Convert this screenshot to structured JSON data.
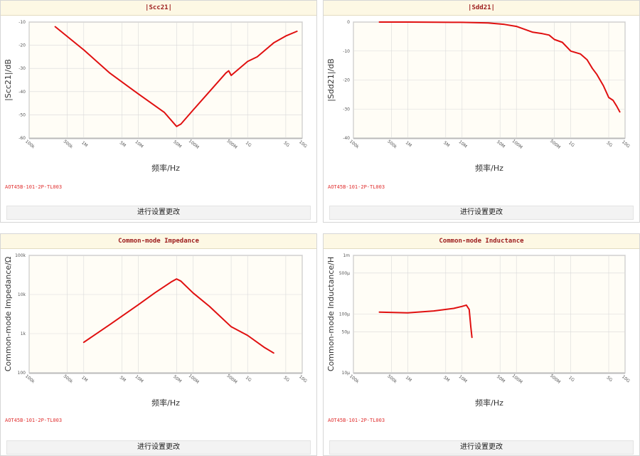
{
  "settings_label": "进行设置更改",
  "charts": [
    {
      "header": "|Scc21|",
      "model": "AOT45B-101-2P-TL003",
      "chart_data": {
        "type": "line",
        "title": "|Scc21|",
        "xlabel": "频率/Hz",
        "ylabel": "|Scc21|/dB",
        "x_scale": "log",
        "y_scale": "linear",
        "xlim": [
          100000,
          10000000000
        ],
        "ylim": [
          -60,
          -10
        ],
        "x_ticks": [
          [
            100000,
            "100k"
          ],
          [
            500000,
            "500k"
          ],
          [
            1000000,
            "1M"
          ],
          [
            5000000,
            "5M"
          ],
          [
            10000000,
            "10M"
          ],
          [
            50000000,
            "50M"
          ],
          [
            100000000,
            "100M"
          ],
          [
            500000000,
            "500M"
          ],
          [
            1000000000,
            "1G"
          ],
          [
            5000000000,
            "5G"
          ],
          [
            10000000000,
            "10G"
          ]
        ],
        "y_ticks": [
          [
            -10,
            "-10"
          ],
          [
            -20,
            "-20"
          ],
          [
            -30,
            "-30"
          ],
          [
            -40,
            "-40"
          ],
          [
            -50,
            "-50"
          ],
          [
            -60,
            "-60"
          ]
        ],
        "color": "#e01010",
        "grid": true,
        "x": [
          300000,
          1000000,
          3000000,
          10000000,
          30000000,
          50000000,
          60000000,
          100000000,
          200000000,
          400000000,
          450000000,
          500000000,
          1000000000,
          1500000000,
          3000000000,
          5000000000,
          8000000000
        ],
        "y": [
          -12,
          -22,
          -32,
          -41,
          -49,
          -55,
          -54,
          -48,
          -40,
          -32,
          -31,
          -33,
          -27,
          -25,
          -19,
          -16,
          -14
        ]
      }
    },
    {
      "header": "|Sdd21|",
      "model": "AOT45B-101-2P-TL003",
      "chart_data": {
        "type": "line",
        "title": "|Sdd21|",
        "xlabel": "频率/Hz",
        "ylabel": "|Sdd21|/dB",
        "x_scale": "log",
        "y_scale": "linear",
        "xlim": [
          100000,
          10000000000
        ],
        "ylim": [
          -40,
          0
        ],
        "x_ticks": [
          [
            100000,
            "100k"
          ],
          [
            500000,
            "500k"
          ],
          [
            1000000,
            "1M"
          ],
          [
            5000000,
            "5M"
          ],
          [
            10000000,
            "10M"
          ],
          [
            50000000,
            "50M"
          ],
          [
            100000000,
            "100M"
          ],
          [
            500000000,
            "500M"
          ],
          [
            1000000000,
            "1G"
          ],
          [
            5000000000,
            "5G"
          ],
          [
            10000000000,
            "10G"
          ]
        ],
        "y_ticks": [
          [
            0,
            "0"
          ],
          [
            -10,
            "-10"
          ],
          [
            -20,
            "-20"
          ],
          [
            -30,
            "-30"
          ],
          [
            -40,
            "-40"
          ]
        ],
        "color": "#e01010",
        "grid": true,
        "x": [
          300000,
          1000000,
          10000000,
          30000000,
          60000000,
          100000000,
          200000000,
          300000000,
          400000000,
          500000000,
          700000000,
          1000000000,
          1500000000,
          2000000000,
          2500000000,
          3000000000,
          4000000000,
          5000000000,
          6000000000,
          7000000000,
          8000000000
        ],
        "y": [
          0,
          0,
          -0.1,
          -0.3,
          -0.8,
          -1.5,
          -3.5,
          -4,
          -4.5,
          -6,
          -7,
          -10,
          -11,
          -13,
          -16,
          -18,
          -22,
          -26,
          -27,
          -29,
          -31
        ]
      }
    },
    {
      "header": "Common-mode Impedance",
      "model": "AOT45B-101-2P-TL003",
      "chart_data": {
        "type": "line",
        "title": "Common-mode Impedance",
        "xlabel": "频率/Hz",
        "ylabel": "Common-mode Impedance/Ω",
        "x_scale": "log",
        "y_scale": "log",
        "xlim": [
          100000,
          10000000000
        ],
        "ylim": [
          100,
          100000
        ],
        "x_ticks": [
          [
            100000,
            "100k"
          ],
          [
            500000,
            "500k"
          ],
          [
            1000000,
            "1M"
          ],
          [
            5000000,
            "5M"
          ],
          [
            10000000,
            "10M"
          ],
          [
            50000000,
            "50M"
          ],
          [
            100000000,
            "100M"
          ],
          [
            500000000,
            "500M"
          ],
          [
            1000000000,
            "1G"
          ],
          [
            5000000000,
            "5G"
          ],
          [
            10000000000,
            "10G"
          ]
        ],
        "y_ticks": [
          [
            100,
            "100"
          ],
          [
            1000,
            "1k"
          ],
          [
            10000,
            "10k"
          ],
          [
            100000,
            "100k"
          ]
        ],
        "color": "#e01010",
        "grid": true,
        "x": [
          1000000,
          3000000,
          10000000,
          20000000,
          40000000,
          50000000,
          60000000,
          100000000,
          200000000,
          500000000,
          1000000000,
          2000000000,
          3000000000
        ],
        "y": [
          600,
          1700,
          5500,
          11000,
          21000,
          25000,
          22000,
          11000,
          5000,
          1500,
          900,
          450,
          320
        ]
      }
    },
    {
      "header": "Common-mode Inductance",
      "model": "AOT45B-101-2P-TL003",
      "chart_data": {
        "type": "line",
        "title": "Common-mode Inductance",
        "xlabel": "频率/Hz",
        "ylabel": "Common-mode Inductance/H",
        "x_scale": "log",
        "y_scale": "log",
        "xlim": [
          100000,
          10000000000
        ],
        "ylim": [
          1e-05,
          0.001
        ],
        "x_ticks": [
          [
            100000,
            "100k"
          ],
          [
            500000,
            "500k"
          ],
          [
            1000000,
            "1M"
          ],
          [
            5000000,
            "5M"
          ],
          [
            10000000,
            "10M"
          ],
          [
            50000000,
            "50M"
          ],
          [
            100000000,
            "100M"
          ],
          [
            500000000,
            "500M"
          ],
          [
            1000000000,
            "1G"
          ],
          [
            5000000000,
            "5G"
          ],
          [
            10000000000,
            "10G"
          ]
        ],
        "y_ticks": [
          [
            1e-05,
            "10μ"
          ],
          [
            5e-05,
            "50μ"
          ],
          [
            0.0001,
            "100μ"
          ],
          [
            0.0005,
            "500μ"
          ],
          [
            0.001,
            "1m"
          ]
        ],
        "color": "#e01010",
        "grid": true,
        "x": [
          300000,
          1000000,
          3000000,
          7000000,
          10000000,
          12000000,
          13500000,
          14500000,
          15200000
        ],
        "y": [
          0.000108,
          0.000105,
          0.000113,
          0.000125,
          0.000135,
          0.000142,
          0.00012,
          6e-05,
          4e-05
        ]
      }
    }
  ]
}
